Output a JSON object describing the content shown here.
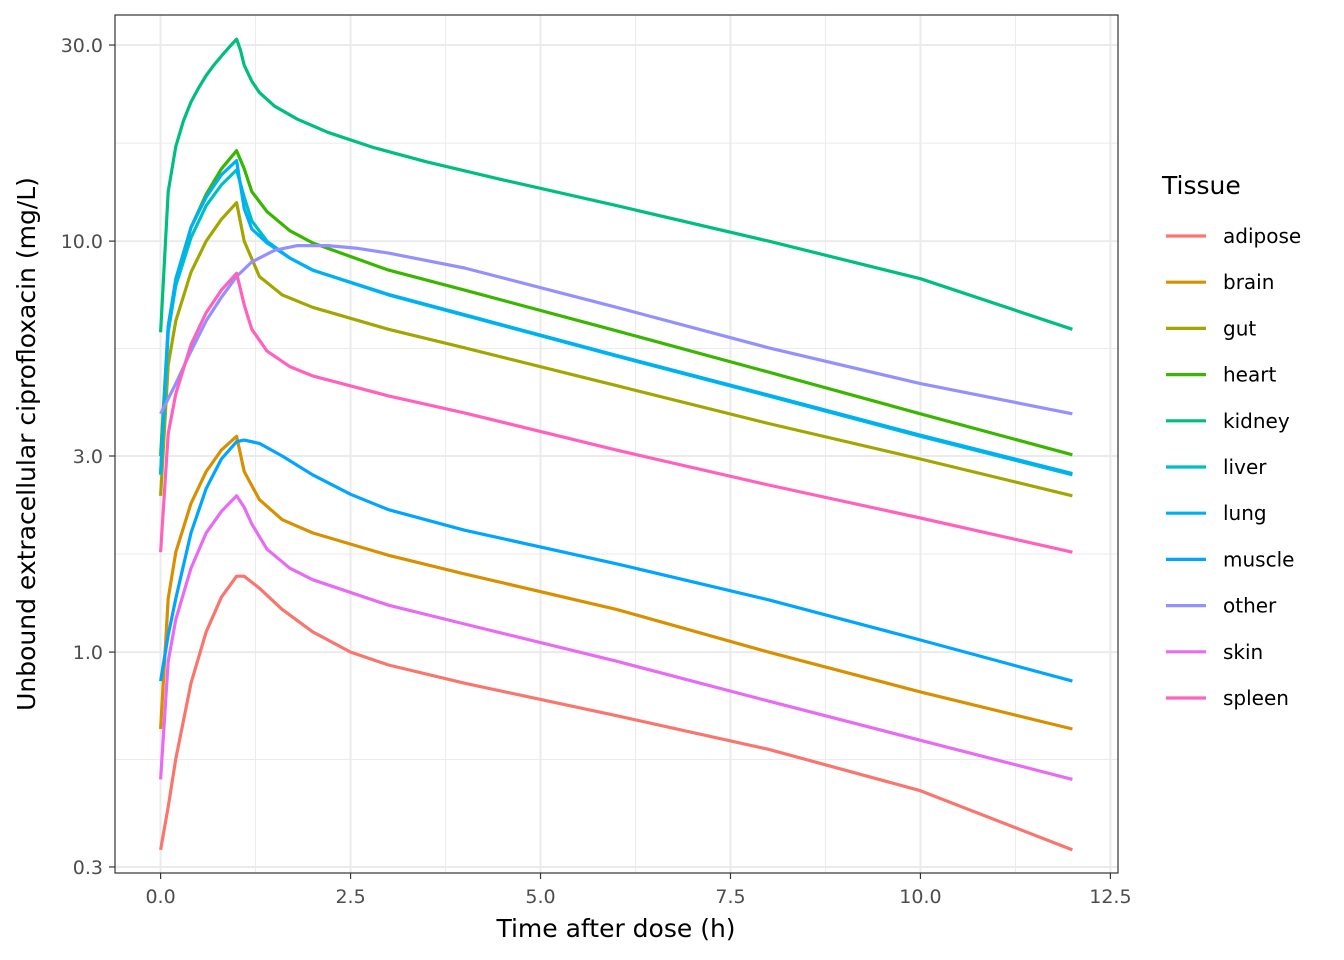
{
  "chart_data": {
    "type": "line",
    "xlabel": "Time after dose (h)",
    "ylabel": "Unbound extracellular ciprofloxacin (mg/L)",
    "xlim": [
      -0.6,
      12.6
    ],
    "ylim": [
      0.29,
      35.5
    ],
    "y_scale": "log",
    "x_ticks": [
      0,
      2.5,
      5,
      7.5,
      10,
      12.5
    ],
    "x_tick_labels": [
      "0.0",
      "2.5",
      "5.0",
      "7.5",
      "10.0",
      "12.5"
    ],
    "y_ticks": [
      0.3,
      1,
      3,
      10,
      30
    ],
    "y_tick_labels": [
      "0.3",
      "1.0",
      "3.0",
      "10.0",
      "30.0"
    ],
    "grid": true,
    "legend": {
      "title": "Tissue",
      "position": "right"
    },
    "series": [
      {
        "name": "adipose",
        "color": "#F8766D",
        "points": [
          [
            0,
            0.33
          ],
          [
            0.1,
            0.42
          ],
          [
            0.2,
            0.55
          ],
          [
            0.4,
            0.84
          ],
          [
            0.6,
            1.12
          ],
          [
            0.8,
            1.36
          ],
          [
            1.0,
            1.53
          ],
          [
            1.1,
            1.53
          ],
          [
            1.3,
            1.43
          ],
          [
            1.6,
            1.27
          ],
          [
            2.0,
            1.12
          ],
          [
            2.5,
            1.0
          ],
          [
            3.0,
            0.93
          ],
          [
            4.0,
            0.84
          ],
          [
            6.0,
            0.7
          ],
          [
            8.0,
            0.58
          ],
          [
            10.0,
            0.46
          ],
          [
            12.0,
            0.33
          ]
        ]
      },
      {
        "name": "brain",
        "color": "#D89000",
        "points": [
          [
            0,
            0.65
          ],
          [
            0.1,
            1.35
          ],
          [
            0.2,
            1.75
          ],
          [
            0.4,
            2.3
          ],
          [
            0.6,
            2.75
          ],
          [
            0.8,
            3.1
          ],
          [
            1.0,
            3.35
          ],
          [
            1.1,
            2.75
          ],
          [
            1.3,
            2.35
          ],
          [
            1.6,
            2.1
          ],
          [
            2.0,
            1.95
          ],
          [
            3.0,
            1.72
          ],
          [
            4.0,
            1.55
          ],
          [
            6.0,
            1.27
          ],
          [
            8.0,
            1.0
          ],
          [
            10.0,
            0.8
          ],
          [
            12.0,
            0.65
          ]
        ]
      },
      {
        "name": "gut",
        "color": "#A3A500",
        "points": [
          [
            0,
            2.4
          ],
          [
            0.1,
            5.0
          ],
          [
            0.2,
            6.4
          ],
          [
            0.4,
            8.4
          ],
          [
            0.6,
            10.0
          ],
          [
            0.8,
            11.3
          ],
          [
            1.0,
            12.4
          ],
          [
            1.1,
            10.0
          ],
          [
            1.3,
            8.2
          ],
          [
            1.6,
            7.4
          ],
          [
            2.0,
            6.9
          ],
          [
            3.0,
            6.1
          ],
          [
            4.0,
            5.5
          ],
          [
            6.0,
            4.45
          ],
          [
            8.0,
            3.6
          ],
          [
            10.0,
            2.95
          ],
          [
            12.0,
            2.4
          ]
        ]
      },
      {
        "name": "heart",
        "color": "#39B600",
        "points": [
          [
            0,
            3.0
          ],
          [
            0.1,
            6.2
          ],
          [
            0.2,
            8.0
          ],
          [
            0.4,
            10.8
          ],
          [
            0.6,
            13.0
          ],
          [
            0.8,
            15.0
          ],
          [
            1.0,
            16.6
          ],
          [
            1.1,
            15.0
          ],
          [
            1.2,
            13.2
          ],
          [
            1.4,
            11.8
          ],
          [
            1.7,
            10.6
          ],
          [
            2.0,
            9.9
          ],
          [
            3.0,
            8.5
          ],
          [
            4.0,
            7.6
          ],
          [
            6.0,
            6.05
          ],
          [
            8.0,
            4.8
          ],
          [
            10.0,
            3.8
          ],
          [
            12.0,
            3.02
          ]
        ]
      },
      {
        "name": "kidney",
        "color": "#00BF7D",
        "points": [
          [
            0,
            6.0
          ],
          [
            0.1,
            13.2
          ],
          [
            0.2,
            17.0
          ],
          [
            0.3,
            19.6
          ],
          [
            0.4,
            21.8
          ],
          [
            0.5,
            23.6
          ],
          [
            0.6,
            25.3
          ],
          [
            0.7,
            26.8
          ],
          [
            0.8,
            28.2
          ],
          [
            0.9,
            29.6
          ],
          [
            1.0,
            31.0
          ],
          [
            1.05,
            29.2
          ],
          [
            1.1,
            26.8
          ],
          [
            1.2,
            24.5
          ],
          [
            1.3,
            23.0
          ],
          [
            1.5,
            21.3
          ],
          [
            1.8,
            19.8
          ],
          [
            2.2,
            18.4
          ],
          [
            2.8,
            16.9
          ],
          [
            3.5,
            15.6
          ],
          [
            4.5,
            14.1
          ],
          [
            6.0,
            12.2
          ],
          [
            8.0,
            10.0
          ],
          [
            10.0,
            8.1
          ],
          [
            12.0,
            6.1
          ]
        ]
      },
      {
        "name": "liver",
        "color": "#00BFC4",
        "points": [
          [
            0,
            2.7
          ],
          [
            0.1,
            6.0
          ],
          [
            0.2,
            7.8
          ],
          [
            0.4,
            10.2
          ],
          [
            0.6,
            12.2
          ],
          [
            0.8,
            13.7
          ],
          [
            1.0,
            14.9
          ],
          [
            1.1,
            12.8
          ],
          [
            1.2,
            11.2
          ],
          [
            1.4,
            10.0
          ],
          [
            1.7,
            9.1
          ],
          [
            2.0,
            8.5
          ],
          [
            3.0,
            7.4
          ],
          [
            4.0,
            6.6
          ],
          [
            6.0,
            5.25
          ],
          [
            8.0,
            4.2
          ],
          [
            10.0,
            3.35
          ],
          [
            12.0,
            2.7
          ]
        ]
      },
      {
        "name": "lung",
        "color": "#00B0F6",
        "points": [
          [
            0,
            2.72
          ],
          [
            0.1,
            6.2
          ],
          [
            0.2,
            8.1
          ],
          [
            0.4,
            10.8
          ],
          [
            0.6,
            12.8
          ],
          [
            0.8,
            14.5
          ],
          [
            1.0,
            15.7
          ],
          [
            1.1,
            12.0
          ],
          [
            1.2,
            10.7
          ],
          [
            1.4,
            9.9
          ],
          [
            1.7,
            9.1
          ],
          [
            2.0,
            8.5
          ],
          [
            3.0,
            7.42
          ],
          [
            4.0,
            6.62
          ],
          [
            6.0,
            5.27
          ],
          [
            8.0,
            4.22
          ],
          [
            10.0,
            3.37
          ],
          [
            12.0,
            2.72
          ]
        ]
      },
      {
        "name": "muscle",
        "color": "#00A5FF",
        "points": [
          [
            0,
            0.85
          ],
          [
            0.1,
            1.1
          ],
          [
            0.2,
            1.35
          ],
          [
            0.4,
            1.95
          ],
          [
            0.6,
            2.5
          ],
          [
            0.8,
            2.95
          ],
          [
            1.0,
            3.25
          ],
          [
            1.1,
            3.28
          ],
          [
            1.3,
            3.22
          ],
          [
            1.6,
            3.0
          ],
          [
            2.0,
            2.7
          ],
          [
            2.5,
            2.42
          ],
          [
            3.0,
            2.22
          ],
          [
            4.0,
            1.98
          ],
          [
            6.0,
            1.64
          ],
          [
            8.0,
            1.34
          ],
          [
            10.0,
            1.07
          ],
          [
            12.0,
            0.85
          ]
        ]
      },
      {
        "name": "other",
        "color": "#9590FF",
        "points": [
          [
            0,
            3.8
          ],
          [
            0.2,
            4.5
          ],
          [
            0.4,
            5.4
          ],
          [
            0.6,
            6.4
          ],
          [
            0.8,
            7.3
          ],
          [
            1.0,
            8.2
          ],
          [
            1.2,
            8.9
          ],
          [
            1.5,
            9.5
          ],
          [
            1.8,
            9.75
          ],
          [
            2.2,
            9.75
          ],
          [
            2.6,
            9.6
          ],
          [
            3.0,
            9.35
          ],
          [
            4.0,
            8.6
          ],
          [
            6.0,
            6.9
          ],
          [
            8.0,
            5.5
          ],
          [
            10.0,
            4.5
          ],
          [
            12.0,
            3.8
          ]
        ]
      },
      {
        "name": "skin",
        "color": "#E76BF3",
        "points": [
          [
            0,
            0.49
          ],
          [
            0.1,
            0.95
          ],
          [
            0.2,
            1.2
          ],
          [
            0.4,
            1.6
          ],
          [
            0.6,
            1.95
          ],
          [
            0.8,
            2.2
          ],
          [
            1.0,
            2.4
          ],
          [
            1.1,
            2.25
          ],
          [
            1.2,
            2.05
          ],
          [
            1.4,
            1.78
          ],
          [
            1.7,
            1.6
          ],
          [
            2.0,
            1.5
          ],
          [
            3.0,
            1.3
          ],
          [
            4.0,
            1.17
          ],
          [
            6.0,
            0.95
          ],
          [
            8.0,
            0.76
          ],
          [
            10.0,
            0.61
          ],
          [
            12.0,
            0.49
          ]
        ]
      },
      {
        "name": "spleen",
        "color": "#FF62BC",
        "points": [
          [
            0,
            1.75
          ],
          [
            0.1,
            3.4
          ],
          [
            0.2,
            4.25
          ],
          [
            0.4,
            5.6
          ],
          [
            0.6,
            6.7
          ],
          [
            0.8,
            7.6
          ],
          [
            1.0,
            8.35
          ],
          [
            1.1,
            7.0
          ],
          [
            1.2,
            6.1
          ],
          [
            1.4,
            5.4
          ],
          [
            1.7,
            4.95
          ],
          [
            2.0,
            4.7
          ],
          [
            3.0,
            4.2
          ],
          [
            4.0,
            3.82
          ],
          [
            6.0,
            3.1
          ],
          [
            8.0,
            2.55
          ],
          [
            10.0,
            2.12
          ],
          [
            12.0,
            1.75
          ]
        ]
      }
    ]
  }
}
